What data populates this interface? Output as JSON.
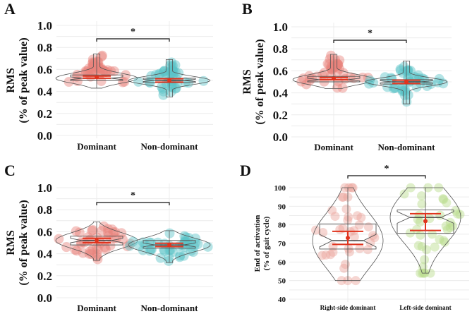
{
  "chart_data": [
    {
      "panel": "A",
      "type": "violin",
      "ylabel": [
        "RMS",
        "(% of peak value)"
      ],
      "ylim": [
        0,
        1.0
      ],
      "yticks": [
        "0.0",
        "0.2",
        "0.4",
        "0.6",
        "0.8",
        "1.0"
      ],
      "ytick_values": [
        0,
        0.2,
        0.4,
        0.6,
        0.8,
        1.0
      ],
      "categories": [
        "Dominant",
        "Non-dominant"
      ],
      "significance": "*",
      "groups": [
        {
          "name": "Dominant",
          "color": "#e8837c",
          "min": 0.43,
          "q1": 0.5,
          "median": 0.52,
          "q3": 0.55,
          "max": 0.74,
          "mean": 0.53,
          "ci": [
            0.52,
            0.54
          ]
        },
        {
          "name": "Non-dominant",
          "color": "#5cc3c8",
          "min": 0.35,
          "q1": 0.48,
          "median": 0.5,
          "q3": 0.52,
          "max": 0.69,
          "mean": 0.5,
          "ci": [
            0.485,
            0.515
          ]
        }
      ]
    },
    {
      "panel": "B",
      "type": "violin",
      "ylabel": [
        "RMS",
        "(% of peak value)"
      ],
      "ylim": [
        0,
        1.0
      ],
      "yticks": [
        "0.0",
        "0.2",
        "0.4",
        "0.6",
        "0.8",
        "1.0"
      ],
      "ytick_values": [
        0,
        0.2,
        0.4,
        0.6,
        0.8,
        1.0
      ],
      "categories": [
        "Dominant",
        "Non-dominant"
      ],
      "significance": "*",
      "groups": [
        {
          "name": "Dominant",
          "color": "#e8837c",
          "min": 0.44,
          "q1": 0.5,
          "median": 0.52,
          "q3": 0.55,
          "max": 0.75,
          "mean": 0.53,
          "ci": [
            0.52,
            0.54
          ]
        },
        {
          "name": "Non-dominant",
          "color": "#5cc3c8",
          "min": 0.3,
          "q1": 0.48,
          "median": 0.5,
          "q3": 0.52,
          "max": 0.69,
          "mean": 0.5,
          "ci": [
            0.485,
            0.515
          ]
        }
      ]
    },
    {
      "panel": "C",
      "type": "violin",
      "ylabel": [
        "RMS",
        "(% of peak value)"
      ],
      "ylim": [
        0,
        1.0
      ],
      "yticks": [
        "0.0",
        "0.2",
        "0.4",
        "0.6",
        "0.8",
        "1.0"
      ],
      "ytick_values": [
        0,
        0.2,
        0.4,
        0.6,
        0.8,
        1.0
      ],
      "categories": [
        "Dominant",
        "Non-dominant"
      ],
      "significance": "*",
      "groups": [
        {
          "name": "Dominant",
          "color": "#e8837c",
          "min": 0.34,
          "q1": 0.48,
          "median": 0.52,
          "q3": 0.56,
          "max": 0.69,
          "mean": 0.52,
          "ci": [
            0.5,
            0.54
          ]
        },
        {
          "name": "Non-dominant",
          "color": "#5cc3c8",
          "min": 0.32,
          "q1": 0.45,
          "median": 0.48,
          "q3": 0.52,
          "max": 0.61,
          "mean": 0.48,
          "ci": [
            0.465,
            0.495
          ]
        }
      ]
    },
    {
      "panel": "D",
      "type": "violin",
      "ylabel": [
        "End of activation",
        "(% of gait cycle)"
      ],
      "ylim": [
        40,
        100
      ],
      "yticks": [
        "40",
        "50",
        "60",
        "70",
        "80",
        "90",
        "100"
      ],
      "ytick_values": [
        40,
        50,
        60,
        70,
        80,
        90,
        100
      ],
      "categories": [
        "Right-side dominant",
        "Left-side dominant"
      ],
      "significance": "*",
      "groups": [
        {
          "name": "Right-side dominant",
          "color": "#eba39c",
          "min": 50,
          "q1": 67,
          "median": 71.5,
          "q3": 80.5,
          "max": 100,
          "mean": 73,
          "ci": [
            69.5,
            76.5
          ]
        },
        {
          "name": "Left-side dominant",
          "color": "#b9dc8a",
          "min": 54,
          "q1": 75.5,
          "median": 84,
          "q3": 88,
          "max": 100,
          "mean": 82,
          "ci": [
            77,
            86
          ]
        }
      ]
    }
  ]
}
